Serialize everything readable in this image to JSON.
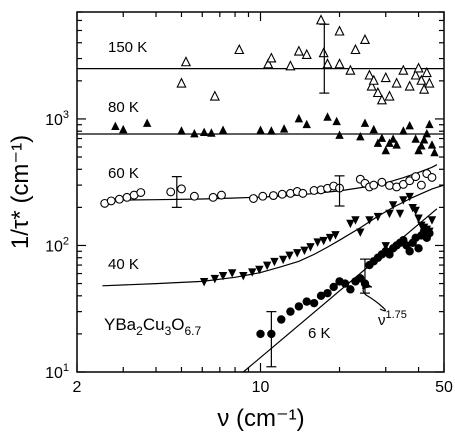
{
  "chart_data": {
    "type": "scatter",
    "title": "",
    "xlabel": "ν (cm⁻¹)",
    "ylabel": "1/τ* (cm⁻¹)",
    "x_scale": "log",
    "y_scale": "log",
    "xlim": [
      2,
      50
    ],
    "ylim": [
      10,
      7000
    ],
    "x_ticks": [
      {
        "value": 2,
        "label": "2"
      },
      {
        "value": 10,
        "label": "10"
      },
      {
        "value": 50,
        "label": "50"
      }
    ],
    "y_ticks": [
      {
        "value": 10,
        "base": "10",
        "exp": "1"
      },
      {
        "value": 100,
        "base": "10",
        "exp": "2"
      },
      {
        "value": 1000,
        "base": "10",
        "exp": "3"
      }
    ],
    "grid": false,
    "sample_label": {
      "prefix": "YBa",
      "sub1": "2",
      "mid": "Cu",
      "sub2": "3",
      "tail": "O",
      "sub3": "6.7"
    },
    "power_law_label": {
      "base": "ν",
      "exp": "1.75"
    },
    "series": [
      {
        "name": "150 K",
        "marker": "open-triangle",
        "fit": {
          "type": "constant",
          "y": 2500
        },
        "points": [
          [
            5,
            1900
          ],
          [
            5.2,
            2800
          ],
          [
            6.7,
            1500
          ],
          [
            8.3,
            3500
          ],
          [
            10.7,
            2700
          ],
          [
            11,
            3000
          ],
          [
            13,
            2600
          ],
          [
            14,
            3400
          ],
          [
            15,
            3200
          ],
          [
            17,
            6000
          ],
          [
            17.4,
            3300
          ],
          [
            18,
            2700
          ],
          [
            20,
            4900
          ],
          [
            20,
            2700
          ],
          [
            22,
            2400
          ],
          [
            23,
            3500
          ],
          [
            25,
            4200
          ],
          [
            26,
            2200
          ],
          [
            26.5,
            1800
          ],
          [
            27,
            2000
          ],
          [
            28,
            1600
          ],
          [
            29,
            1400
          ],
          [
            30,
            2100
          ],
          [
            31,
            1500
          ],
          [
            33,
            1900
          ],
          [
            35,
            2400
          ],
          [
            37,
            1800
          ],
          [
            39,
            2200
          ],
          [
            40,
            2500
          ],
          [
            41,
            2000
          ],
          [
            42,
            1700
          ],
          [
            43,
            2300
          ],
          [
            44,
            1900
          ]
        ]
      },
      {
        "name": "80 K",
        "marker": "filled-triangle",
        "fit": {
          "type": "constant",
          "y": 760
        },
        "points": [
          [
            2.8,
            870
          ],
          [
            3.0,
            820
          ],
          [
            3.7,
            920
          ],
          [
            5,
            800
          ],
          [
            5.6,
            760
          ],
          [
            6.1,
            780
          ],
          [
            6.5,
            770
          ],
          [
            7.2,
            810
          ],
          [
            10,
            810
          ],
          [
            11,
            800
          ],
          [
            12.3,
            830
          ],
          [
            14,
            1000
          ],
          [
            15,
            900
          ],
          [
            18,
            1030
          ],
          [
            19.5,
            950
          ],
          [
            20,
            740
          ],
          [
            24,
            720
          ],
          [
            25,
            920
          ],
          [
            27,
            820
          ],
          [
            28,
            640
          ],
          [
            29,
            700
          ],
          [
            30,
            560
          ],
          [
            31,
            640
          ],
          [
            32,
            690
          ],
          [
            33,
            620
          ],
          [
            35,
            800
          ],
          [
            37,
            880
          ],
          [
            39,
            690
          ],
          [
            40,
            560
          ],
          [
            41,
            610
          ],
          [
            42,
            680
          ],
          [
            43,
            760
          ],
          [
            44,
            900
          ],
          [
            45,
            620
          ],
          [
            46,
            540
          ]
        ]
      },
      {
        "name": "60 K",
        "marker": "open-circle",
        "fit": {
          "type": "curve",
          "points": [
            [
              2.5,
              228
            ],
            [
              4,
              230
            ],
            [
              6,
              233
            ],
            [
              8,
              237
            ],
            [
              10,
              241
            ],
            [
              13,
              248
            ],
            [
              15,
              254
            ],
            [
              20,
              270
            ],
            [
              25,
              290
            ],
            [
              30,
              312
            ],
            [
              35,
              343
            ],
            [
              40,
              378
            ],
            [
              45,
              415
            ],
            [
              47,
              435
            ]
          ]
        },
        "points": [
          [
            2.55,
            215
          ],
          [
            2.7,
            225
          ],
          [
            2.9,
            232
          ],
          [
            3.1,
            240
          ],
          [
            3.3,
            250
          ],
          [
            3.5,
            262
          ],
          [
            4.55,
            265
          ],
          [
            5,
            280
          ],
          [
            5.6,
            245
          ],
          [
            6.6,
            240
          ],
          [
            7.1,
            250
          ],
          [
            9.4,
            235
          ],
          [
            10.2,
            245
          ],
          [
            11.2,
            248
          ],
          [
            12.1,
            254
          ],
          [
            13,
            258
          ],
          [
            13.8,
            267
          ],
          [
            14.5,
            258
          ],
          [
            16,
            272
          ],
          [
            17,
            275
          ],
          [
            18,
            283
          ],
          [
            19,
            295
          ],
          [
            20,
            284
          ],
          [
            24,
            334
          ],
          [
            25,
            310
          ],
          [
            26,
            290
          ],
          [
            27,
            300
          ],
          [
            29,
            316
          ],
          [
            31,
            298
          ],
          [
            33,
            290
          ],
          [
            35,
            304
          ],
          [
            37,
            325
          ],
          [
            39,
            350
          ],
          [
            41,
            300
          ],
          [
            43,
            370
          ],
          [
            45,
            345
          ]
        ]
      },
      {
        "name": "40 K",
        "marker": "filled-down-triangle",
        "fit": {
          "type": "curve",
          "points": [
            [
              2.5,
              48
            ],
            [
              4,
              50
            ],
            [
              6,
              52
            ],
            [
              8,
              56
            ],
            [
              10,
              61
            ],
            [
              12,
              68
            ],
            [
              14,
              75
            ],
            [
              16,
              85
            ],
            [
              18,
              97
            ],
            [
              20,
              110
            ],
            [
              24,
              138
            ],
            [
              28,
              170
            ],
            [
              32,
              200
            ],
            [
              38,
              240
            ],
            [
              45,
              280
            ],
            [
              50,
              300
            ]
          ]
        },
        "points": [
          [
            6.1,
            52
          ],
          [
            6.7,
            55
          ],
          [
            7.2,
            58
          ],
          [
            7.8,
            61
          ],
          [
            8.6,
            58
          ],
          [
            9.3,
            62
          ],
          [
            9.9,
            65
          ],
          [
            10.6,
            70
          ],
          [
            11.3,
            75
          ],
          [
            12.2,
            78
          ],
          [
            12.9,
            84
          ],
          [
            13.8,
            88
          ],
          [
            14.7,
            92
          ],
          [
            15.5,
            98
          ],
          [
            16.5,
            107
          ],
          [
            17.4,
            110
          ],
          [
            18.4,
            116
          ],
          [
            19.3,
            122
          ],
          [
            22,
            150
          ],
          [
            23,
            160
          ],
          [
            24,
            128
          ],
          [
            26,
            160
          ],
          [
            28,
            170
          ],
          [
            30,
            100
          ],
          [
            31,
            180
          ],
          [
            32,
            210
          ],
          [
            34,
            180
          ],
          [
            35,
            230
          ],
          [
            37,
            245
          ],
          [
            38,
            200
          ],
          [
            39,
            190
          ],
          [
            40,
            165
          ],
          [
            41,
            145
          ],
          [
            42,
            140
          ],
          [
            43,
            135
          ],
          [
            44,
            130
          ],
          [
            45,
            160
          ]
        ]
      },
      {
        "name": "6 K",
        "marker": "filled-circle",
        "fit": {
          "type": "power",
          "exponent": 1.75,
          "from": [
            8.6,
            10
          ],
          "to": [
            47,
            195
          ]
        },
        "points": [
          [
            10,
            20
          ],
          [
            11,
            20
          ],
          [
            12,
            26
          ],
          [
            13,
            30
          ],
          [
            14,
            33
          ],
          [
            15,
            36
          ],
          [
            16,
            35
          ],
          [
            17,
            40
          ],
          [
            18,
            42
          ],
          [
            19,
            47
          ],
          [
            20,
            52
          ],
          [
            21,
            50
          ],
          [
            22,
            45
          ],
          [
            23,
            52
          ],
          [
            24,
            55
          ],
          [
            25,
            50
          ],
          [
            26,
            70
          ],
          [
            27,
            75
          ],
          [
            28,
            80
          ],
          [
            29,
            85
          ],
          [
            30,
            90
          ],
          [
            31,
            85
          ],
          [
            32,
            95
          ],
          [
            33,
            100
          ],
          [
            34,
            105
          ],
          [
            35,
            110
          ],
          [
            36,
            100
          ],
          [
            37,
            90
          ],
          [
            38,
            105
          ],
          [
            39,
            115
          ],
          [
            40,
            95
          ],
          [
            41,
            120
          ],
          [
            42,
            130
          ],
          [
            43,
            115
          ],
          [
            44,
            125
          ]
        ]
      }
    ],
    "error_bars": [
      {
        "series": "150 K",
        "x": 17.5,
        "y_low": 1600,
        "y_high": 5600
      },
      {
        "series": "60 K",
        "x": 4.8,
        "y_low": 200,
        "y_high": 350
      },
      {
        "series": "60 K",
        "x": 20,
        "y_low": 205,
        "y_high": 355
      },
      {
        "series": "40 K",
        "x": 25,
        "y_low": 42,
        "y_high": 78
      },
      {
        "series": "6 K",
        "x": 11,
        "y_low": 11,
        "y_high": 30
      }
    ]
  }
}
